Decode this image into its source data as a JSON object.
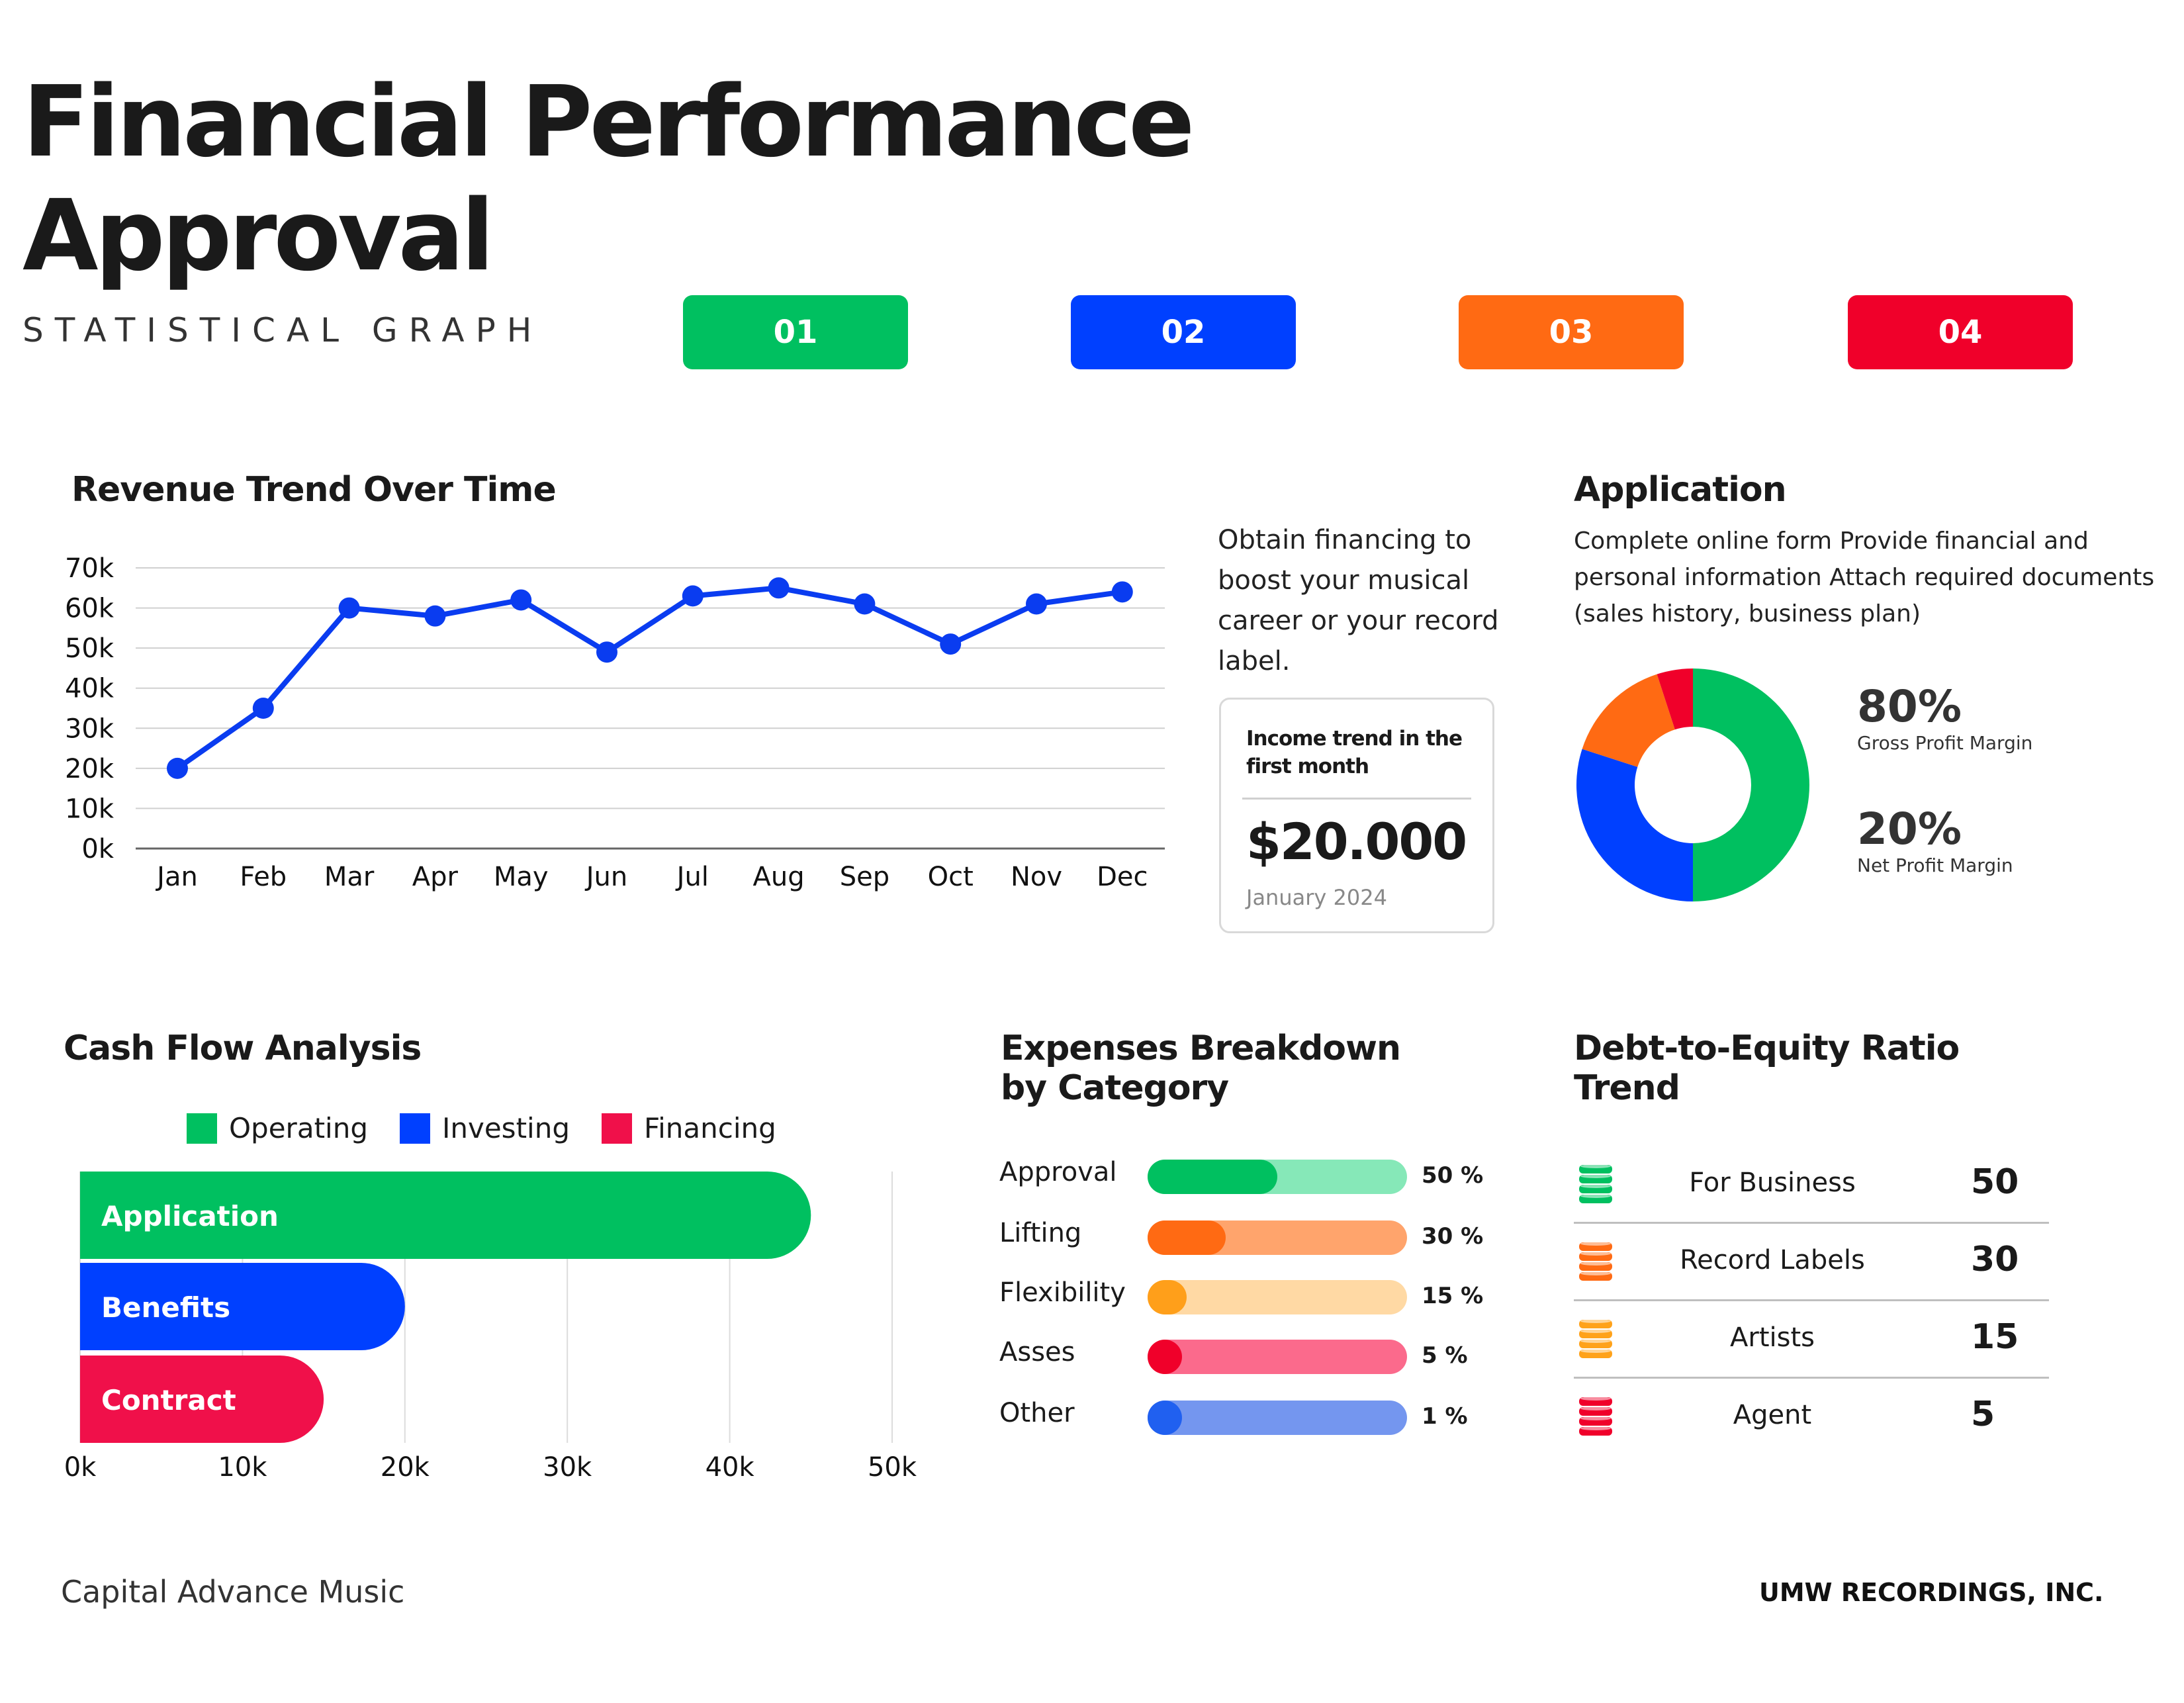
{
  "header": {
    "title_line1": "Financial Performance",
    "title_line2": "Approval",
    "subtitle": "STATISTICAL GRAPH",
    "tags": [
      {
        "label": "01",
        "color": "#00c060"
      },
      {
        "label": "02",
        "color": "#0040ff"
      },
      {
        "label": "03",
        "color": "#ff6a13"
      },
      {
        "label": "04",
        "color": "#f0002a"
      }
    ]
  },
  "revenue": {
    "title": "Revenue Trend Over Time",
    "side_text": "Obtain financing to boost your musical career or your record label.",
    "card": {
      "heading": "Income trend in the first month",
      "value": "$20.000",
      "date": "January 2024"
    }
  },
  "application": {
    "title": "Application",
    "description": "Complete online form Provide financial and personal information Attach required documents (sales history, business plan)",
    "stats": [
      {
        "value": "80%",
        "label": "Gross Profit Margin"
      },
      {
        "value": "20%",
        "label": "Net Profit Margin"
      }
    ]
  },
  "cashflow": {
    "title": "Cash Flow Analysis"
  },
  "expenses": {
    "title": "Expenses Breakdown by Category",
    "items": [
      {
        "label": "Approval",
        "pct_text": "50 %",
        "value": 50,
        "fill": "#00c060",
        "track": "#86e8b8"
      },
      {
        "label": "Lifting",
        "pct_text": "30 %",
        "value": 30,
        "fill": "#ff6a13",
        "track": "#ffa46c"
      },
      {
        "label": "Flexibility",
        "pct_text": "15 %",
        "value": 15,
        "fill": "#ff9f1a",
        "track": "#ffd9a4"
      },
      {
        "label": "Asses",
        "pct_text": "5 %",
        "value": 5,
        "fill": "#f0002a",
        "track": "#fb6a8c"
      },
      {
        "label": "Other",
        "pct_text": "1 %",
        "value": 1,
        "fill": "#2060f0",
        "track": "#7496ef"
      }
    ]
  },
  "debt": {
    "title": "Debt-to-Equity Ratio Trend",
    "rows": [
      {
        "label": "For Business",
        "value": "50",
        "color": "#00c060"
      },
      {
        "label": "Record Labels",
        "value": "30",
        "color": "#ff6a13"
      },
      {
        "label": "Artists",
        "value": "15",
        "color": "#ffa21a"
      },
      {
        "label": "Agent",
        "value": "5",
        "color": "#f0002a"
      }
    ]
  },
  "footer": {
    "left": "Capital Advance Music",
    "right": "UMW RECORDINGS, INC."
  },
  "chart_data": [
    {
      "type": "line",
      "title": "Revenue Trend Over Time",
      "categories": [
        "Jan",
        "Feb",
        "Mar",
        "Apr",
        "May",
        "Jun",
        "Jul",
        "Aug",
        "Sep",
        "Oct",
        "Nov",
        "Dec"
      ],
      "values": [
        20000,
        35000,
        60000,
        58000,
        62000,
        49000,
        63000,
        65000,
        61000,
        51000,
        61000,
        64000
      ],
      "ylim": [
        0,
        70000
      ],
      "yticks": [
        "0k",
        "10k",
        "20k",
        "30k",
        "40k",
        "50k",
        "60k",
        "70k"
      ],
      "grid": true,
      "color": "#0a3cf0"
    },
    {
      "type": "pie",
      "subtype": "donut",
      "labels": [
        "",
        "",
        "",
        ""
      ],
      "values": [
        50,
        30,
        15,
        5
      ],
      "colors": [
        "#00c060",
        "#0040ff",
        "#ff6a13",
        "#f0002a"
      ]
    },
    {
      "type": "bar",
      "orientation": "horizontal",
      "title": "Cash Flow Analysis",
      "categories": [
        "Application",
        "Benefits",
        "Contract"
      ],
      "values": [
        45000,
        20000,
        15000
      ],
      "colors": [
        "#00c060",
        "#0040ff",
        "#f0104a"
      ],
      "legend": [
        {
          "name": "Operating",
          "color": "#00c060"
        },
        {
          "name": "Investing",
          "color": "#0040ff"
        },
        {
          "name": "Financing",
          "color": "#f0104a"
        }
      ],
      "legend_position": "top",
      "xlim": [
        0,
        50000
      ],
      "xticks": [
        "0k",
        "10k",
        "20k",
        "30k",
        "40k",
        "50k"
      ],
      "grid": true
    }
  ]
}
